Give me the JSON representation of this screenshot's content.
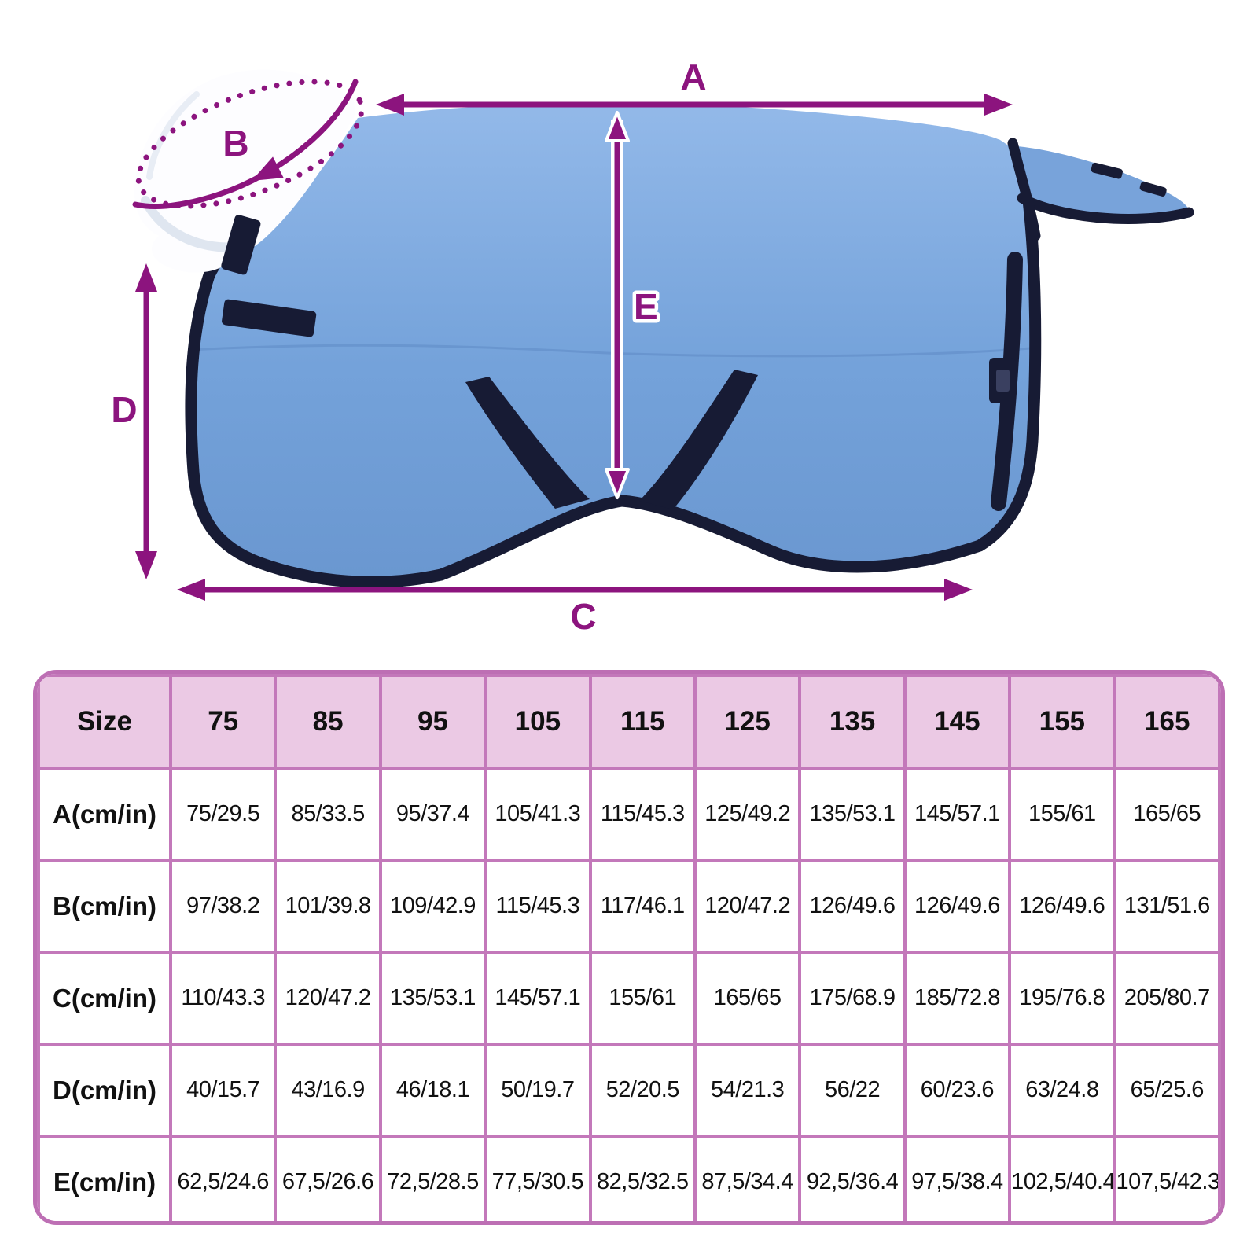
{
  "diagram": {
    "labels": {
      "a": "A",
      "b": "B",
      "c": "C",
      "d": "D",
      "e": "E"
    },
    "colors": {
      "measure_arrow": "#8c147e",
      "blanket_blue": "#74a2da",
      "trim_navy": "#171b34",
      "collar_white": "#ffffff",
      "table_border": "#c378ba",
      "table_header_fill": "#ebc9e4"
    }
  },
  "size_table": {
    "header": [
      "Size",
      "75",
      "85",
      "95",
      "105",
      "115",
      "125",
      "135",
      "145",
      "155",
      "165"
    ],
    "rows": [
      {
        "label": "A(cm/in)",
        "values": [
          "75/29.5",
          "85/33.5",
          "95/37.4",
          "105/41.3",
          "115/45.3",
          "125/49.2",
          "135/53.1",
          "145/57.1",
          "155/61",
          "165/65"
        ]
      },
      {
        "label": "B(cm/in)",
        "values": [
          "97/38.2",
          "101/39.8",
          "109/42.9",
          "115/45.3",
          "117/46.1",
          "120/47.2",
          "126/49.6",
          "126/49.6",
          "126/49.6",
          "131/51.6"
        ]
      },
      {
        "label": "C(cm/in)",
        "values": [
          "110/43.3",
          "120/47.2",
          "135/53.1",
          "145/57.1",
          "155/61",
          "165/65",
          "175/68.9",
          "185/72.8",
          "195/76.8",
          "205/80.7"
        ]
      },
      {
        "label": "D(cm/in)",
        "values": [
          "40/15.7",
          "43/16.9",
          "46/18.1",
          "50/19.7",
          "52/20.5",
          "54/21.3",
          "56/22",
          "60/23.6",
          "63/24.8",
          "65/25.6"
        ]
      },
      {
        "label": "E(cm/in)",
        "values": [
          "62,5/24.6",
          "67,5/26.6",
          "72,5/28.5",
          "77,5/30.5",
          "82,5/32.5",
          "87,5/34.4",
          "92,5/36.4",
          "97,5/38.4",
          "102,5/40.4",
          "107,5/42.3"
        ]
      }
    ]
  }
}
